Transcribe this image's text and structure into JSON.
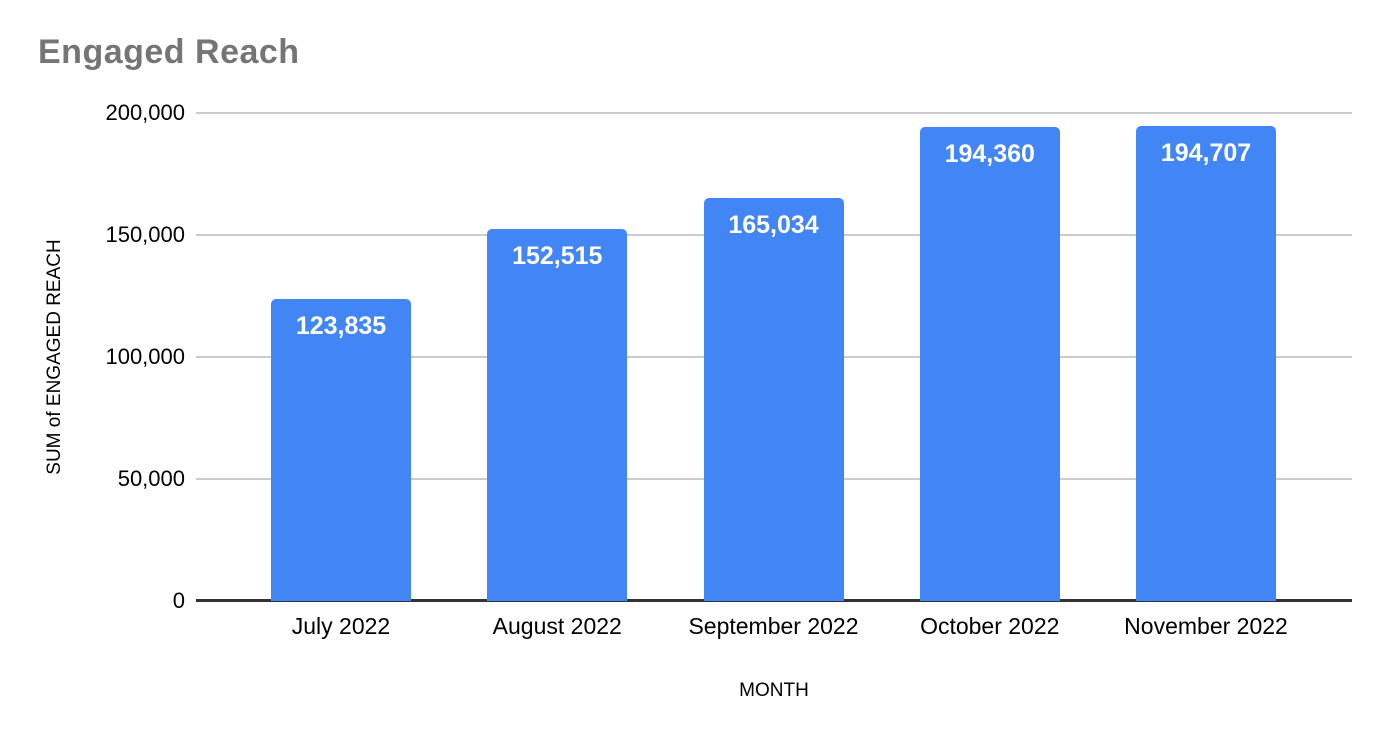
{
  "chart_data": {
    "type": "bar",
    "title": "Engaged Reach",
    "categories": [
      "July 2022",
      "August 2022",
      "September 2022",
      "October 2022",
      "November 2022"
    ],
    "values": [
      123835,
      152515,
      165034,
      194360,
      194707
    ],
    "value_labels": [
      "123,835",
      "152,515",
      "165,034",
      "194,360",
      "194,707"
    ],
    "xlabel": "MONTH",
    "ylabel": "SUM of ENGAGED REACH",
    "ylim": [
      0,
      200000
    ],
    "yticks": [
      0,
      50000,
      100000,
      150000,
      200000
    ],
    "ytick_labels": [
      "0",
      "50,000",
      "100,000",
      "150,000",
      "200,000"
    ],
    "grid": true,
    "legend_position": "none"
  },
  "colors": {
    "bar_fill": "#4285f4",
    "bar_value_text": "#ffffff",
    "title_text": "#757575",
    "gridline": "#cccccc",
    "axis_line": "#333333",
    "tick_text": "#000000"
  }
}
